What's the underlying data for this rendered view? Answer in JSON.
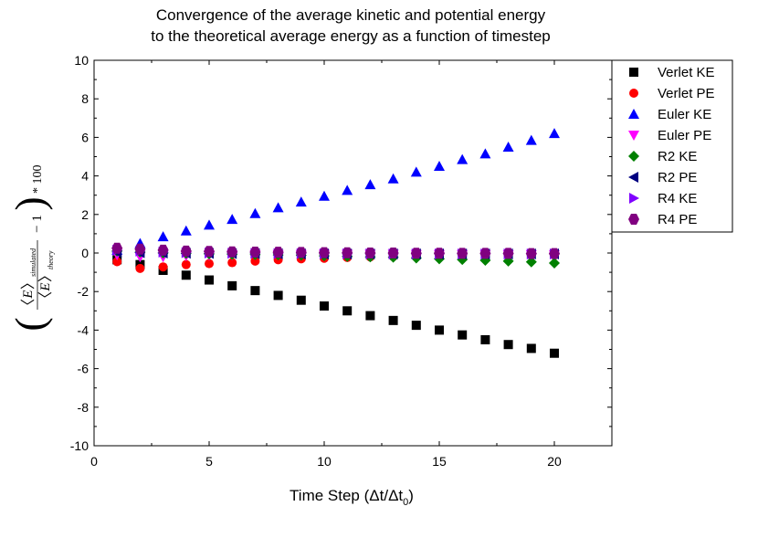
{
  "chart_data": {
    "type": "scatter",
    "title": [
      "Convergence of the average kinetic and potential energy",
      "to the theoretical average energy as a function of timestep"
    ],
    "xlabel": "Time Step (Δt/Δt",
    "xlabel_sub": "0",
    "xlabel_close": ")",
    "ylabel": {
      "lparen": "(",
      "rparen": ")",
      "E": "E",
      "sub_num": "simulated",
      "sub_den": "theory",
      "minus_one": "− 1",
      "times": "* 100",
      "bracket_l": "〈",
      "bracket_r": "〉"
    },
    "xlim": [
      0,
      22.5
    ],
    "ylim": [
      -10,
      10
    ],
    "xticks": [
      0,
      5,
      10,
      15,
      20
    ],
    "yticks": [
      -10,
      -8,
      -6,
      -4,
      -2,
      0,
      2,
      4,
      6,
      8,
      10
    ],
    "x": [
      1,
      2,
      3,
      4,
      5,
      6,
      7,
      8,
      9,
      10,
      11,
      12,
      13,
      14,
      15,
      16,
      17,
      18,
      19,
      20
    ],
    "legend_position": "outside-top-right",
    "series": [
      {
        "name": "Verlet KE",
        "marker": "square",
        "color": "#000000",
        "values": [
          -0.35,
          -0.6,
          -0.9,
          -1.15,
          -1.4,
          -1.7,
          -1.95,
          -2.2,
          -2.45,
          -2.75,
          -3.0,
          -3.25,
          -3.5,
          -3.75,
          -4.0,
          -4.25,
          -4.5,
          -4.75,
          -4.95,
          -5.2
        ]
      },
      {
        "name": "Verlet PE",
        "marker": "circle",
        "color": "#ff0000",
        "values": [
          -0.45,
          -0.8,
          -0.72,
          -0.6,
          -0.55,
          -0.5,
          -0.42,
          -0.35,
          -0.3,
          -0.27,
          -0.23,
          -0.2,
          -0.18,
          -0.16,
          -0.15,
          -0.13,
          -0.12,
          -0.11,
          -0.1,
          -0.1
        ]
      },
      {
        "name": "Euler KE",
        "marker": "triangle-up",
        "color": "#0000ff",
        "values": [
          0.15,
          0.5,
          0.85,
          1.15,
          1.45,
          1.75,
          2.05,
          2.35,
          2.65,
          2.95,
          3.25,
          3.55,
          3.85,
          4.2,
          4.5,
          4.85,
          5.15,
          5.5,
          5.85,
          6.2
        ]
      },
      {
        "name": "Euler PE",
        "marker": "triangle-down",
        "color": "#ff00ff",
        "values": [
          -0.1,
          -0.2,
          -0.2,
          -0.15,
          -0.12,
          -0.1,
          -0.09,
          -0.08,
          -0.08,
          -0.07,
          -0.07,
          -0.07,
          -0.07,
          -0.08,
          -0.08,
          -0.08,
          -0.08,
          -0.09,
          -0.09,
          -0.1
        ]
      },
      {
        "name": "R2 KE",
        "marker": "diamond",
        "color": "#008000",
        "values": [
          0.1,
          0.05,
          0.0,
          -0.02,
          -0.05,
          -0.07,
          -0.08,
          -0.1,
          -0.12,
          -0.15,
          -0.18,
          -0.2,
          -0.22,
          -0.26,
          -0.3,
          -0.34,
          -0.38,
          -0.42,
          -0.46,
          -0.52
        ]
      },
      {
        "name": "R2 PE",
        "marker": "triangle-left",
        "color": "#000080",
        "values": [
          0.05,
          0.02,
          0.0,
          -0.01,
          -0.02,
          -0.03,
          -0.03,
          -0.04,
          -0.05,
          -0.05,
          -0.05,
          -0.05,
          -0.05,
          -0.05,
          -0.05,
          -0.05,
          -0.05,
          -0.05,
          -0.05,
          -0.05
        ]
      },
      {
        "name": "R4 KE",
        "marker": "triangle-right",
        "color": "#8000ff",
        "values": [
          0.15,
          0.1,
          0.05,
          0.02,
          0.0,
          -0.01,
          -0.02,
          -0.03,
          -0.03,
          -0.04,
          -0.04,
          -0.04,
          -0.05,
          -0.05,
          -0.05,
          -0.05,
          -0.05,
          -0.05,
          -0.05,
          -0.05
        ]
      },
      {
        "name": "R4 PE",
        "marker": "hexagon",
        "color": "#800080",
        "values": [
          0.25,
          0.2,
          0.15,
          0.1,
          0.08,
          0.06,
          0.05,
          0.04,
          0.03,
          0.02,
          0.01,
          0.0,
          0.0,
          -0.01,
          -0.01,
          -0.02,
          -0.02,
          -0.02,
          -0.03,
          -0.03
        ]
      }
    ]
  }
}
